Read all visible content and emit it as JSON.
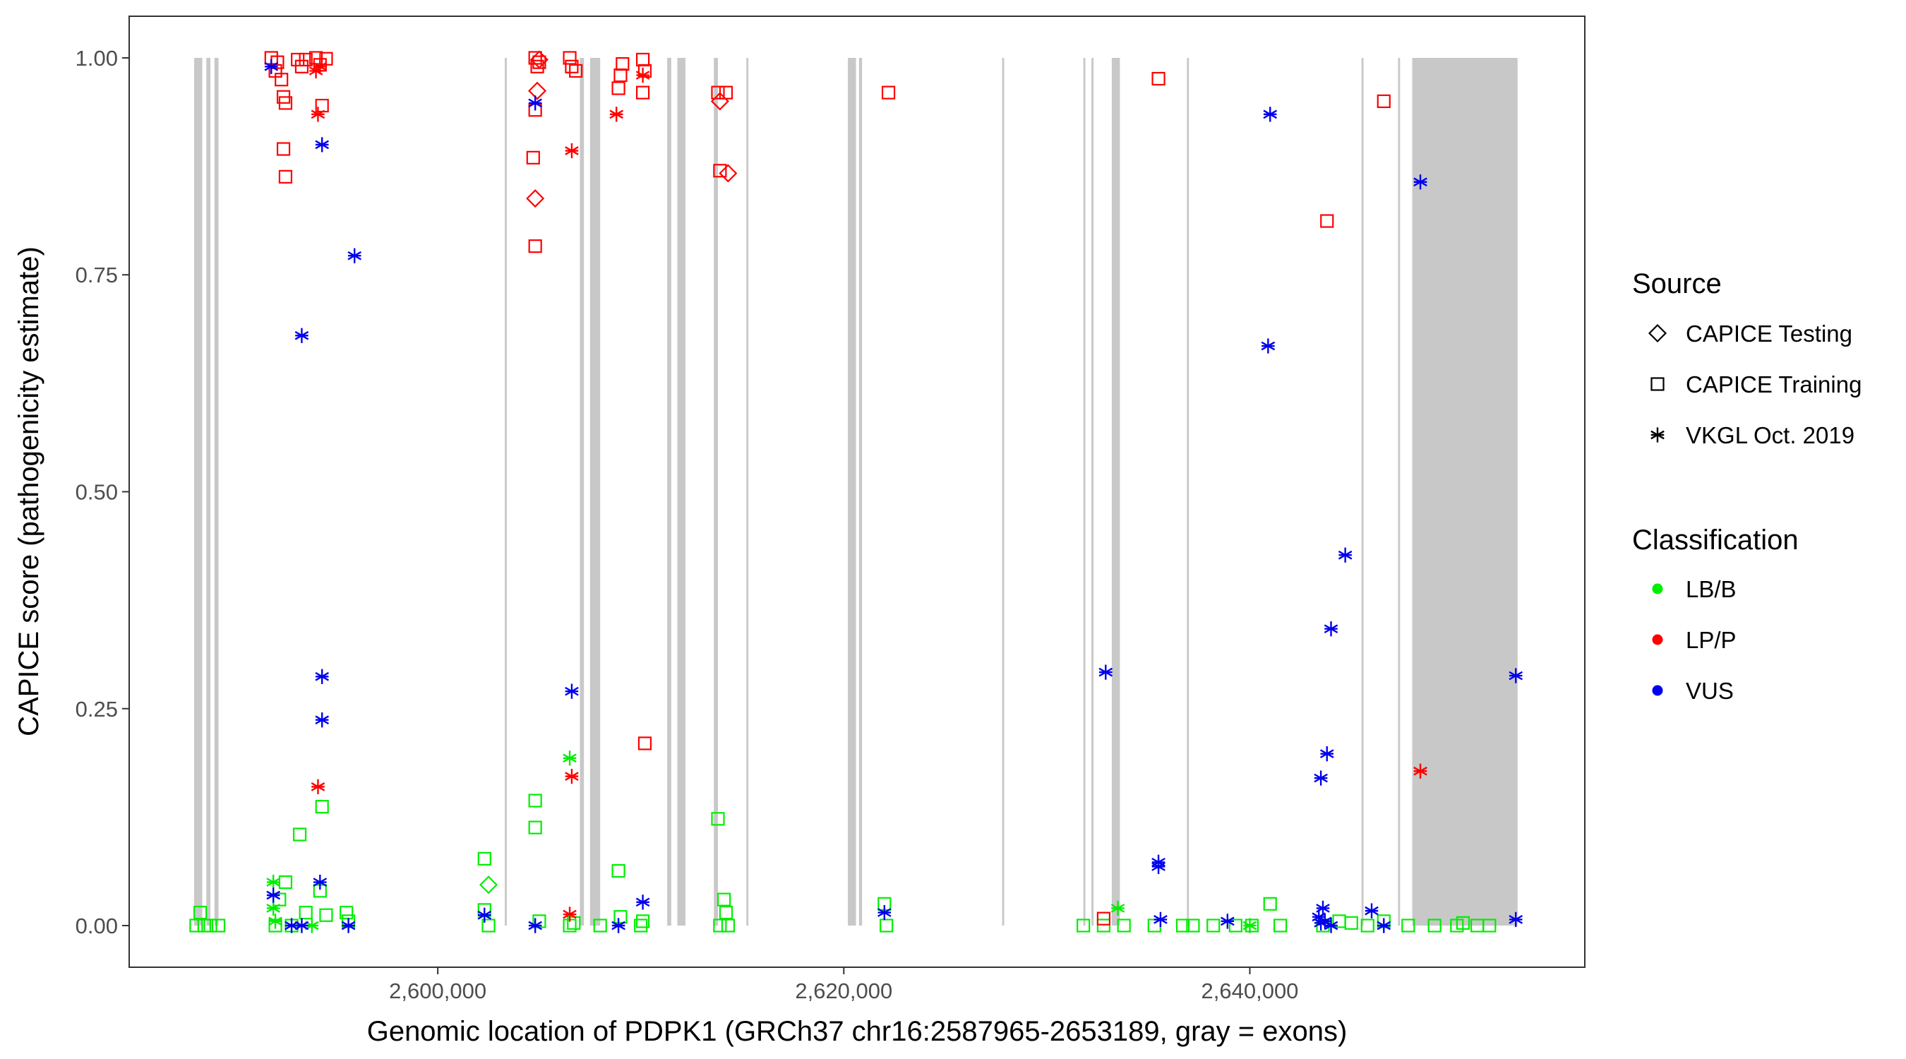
{
  "chart_data": {
    "type": "scatter",
    "title": "",
    "xlabel": "Genomic location of PDPK1 (GRCh37 chr16:2587965-2653189, gray = exons)",
    "ylabel": "CAPICE score (pathogenicity estimate)",
    "xlim": [
      2584800,
      2656500
    ],
    "ylim": [
      -0.048,
      1.048
    ],
    "x_ticks": [
      2600000,
      2620000,
      2640000
    ],
    "x_tick_labels": [
      "2,600,000",
      "2,620,000",
      "2,640,000"
    ],
    "y_ticks": [
      0.0,
      0.25,
      0.5,
      0.75,
      1.0
    ],
    "y_tick_labels": [
      "0.00",
      "0.25",
      "0.50",
      "0.75",
      "1.00"
    ],
    "grid": false,
    "legend_position": "right",
    "legend": {
      "source_title": "Source",
      "source_entries": [
        {
          "shape": "diamond",
          "label": "CAPICE Testing"
        },
        {
          "shape": "square",
          "label": "CAPICE Training"
        },
        {
          "shape": "asterisk",
          "label": "VKGL Oct. 2019"
        }
      ],
      "class_title": "Classification",
      "class_entries": [
        {
          "key": "LB/B",
          "label": "LB/B",
          "color": "#00ee00"
        },
        {
          "key": "LP/P",
          "label": "LP/P",
          "color": "#ff0000"
        },
        {
          "key": "VUS",
          "label": "VUS",
          "color": "#0000ee"
        }
      ]
    },
    "exons": [
      [
        2588000,
        2588400
      ],
      [
        2588600,
        2588800
      ],
      [
        2589000,
        2589200
      ],
      [
        2588700,
        2588750
      ],
      [
        2603300,
        2603400
      ],
      [
        2607500,
        2608000
      ],
      [
        2607000,
        2607200
      ],
      [
        2611800,
        2612200
      ],
      [
        2611300,
        2611500
      ],
      [
        2613600,
        2613800
      ],
      [
        2615200,
        2615300
      ],
      [
        2620200,
        2620600
      ],
      [
        2620750,
        2620900
      ],
      [
        2627800,
        2627900
      ],
      [
        2631800,
        2631900
      ],
      [
        2632200,
        2632300
      ],
      [
        2633200,
        2633600
      ],
      [
        2636900,
        2637000
      ],
      [
        2645500,
        2645600
      ],
      [
        2647300,
        2647400
      ],
      [
        2648000,
        2653189
      ]
    ],
    "series": [
      {
        "name": "CAPICE Training",
        "shape": "square",
        "points": [
          {
            "x": 2588100,
            "y": 0.0,
            "c": "LB/B"
          },
          {
            "x": 2588300,
            "y": 0.015,
            "c": "LB/B"
          },
          {
            "x": 2588500,
            "y": 0.0,
            "c": "LB/B"
          },
          {
            "x": 2588800,
            "y": 0.0,
            "c": "LB/B"
          },
          {
            "x": 2589200,
            "y": 0.0,
            "c": "LB/B"
          },
          {
            "x": 2592000,
            "y": 0.0,
            "c": "LB/B"
          },
          {
            "x": 2592200,
            "y": 0.03,
            "c": "LB/B"
          },
          {
            "x": 2592500,
            "y": 0.05,
            "c": "LB/B"
          },
          {
            "x": 2592800,
            "y": 0.0,
            "c": "LB/B"
          },
          {
            "x": 2593200,
            "y": 0.105,
            "c": "LB/B"
          },
          {
            "x": 2593500,
            "y": 0.015,
            "c": "LB/B"
          },
          {
            "x": 2594200,
            "y": 0.04,
            "c": "LB/B"
          },
          {
            "x": 2594300,
            "y": 0.137,
            "c": "LB/B"
          },
          {
            "x": 2594500,
            "y": 0.012,
            "c": "LB/B"
          },
          {
            "x": 2595500,
            "y": 0.015,
            "c": "LB/B"
          },
          {
            "x": 2595600,
            "y": 0.005,
            "c": "LB/B"
          },
          {
            "x": 2591800,
            "y": 1.0,
            "c": "LP/P"
          },
          {
            "x": 2592000,
            "y": 0.985,
            "c": "LP/P"
          },
          {
            "x": 2592100,
            "y": 0.995,
            "c": "LP/P"
          },
          {
            "x": 2592300,
            "y": 0.975,
            "c": "LP/P"
          },
          {
            "x": 2592400,
            "y": 0.955,
            "c": "LP/P"
          },
          {
            "x": 2592500,
            "y": 0.948,
            "c": "LP/P"
          },
          {
            "x": 2592400,
            "y": 0.895,
            "c": "LP/P"
          },
          {
            "x": 2592500,
            "y": 0.863,
            "c": "LP/P"
          },
          {
            "x": 2593100,
            "y": 0.998,
            "c": "LP/P"
          },
          {
            "x": 2593300,
            "y": 0.99,
            "c": "LP/P"
          },
          {
            "x": 2593500,
            "y": 0.998,
            "c": "LP/P"
          },
          {
            "x": 2594000,
            "y": 1.0,
            "c": "LP/P"
          },
          {
            "x": 2594200,
            "y": 0.992,
            "c": "LP/P"
          },
          {
            "x": 2594300,
            "y": 0.945,
            "c": "LP/P"
          },
          {
            "x": 2594500,
            "y": 0.999,
            "c": "LP/P"
          },
          {
            "x": 2602300,
            "y": 0.077,
            "c": "LB/B"
          },
          {
            "x": 2602300,
            "y": 0.018,
            "c": "LB/B"
          },
          {
            "x": 2602500,
            "y": 0.0,
            "c": "LB/B"
          },
          {
            "x": 2604800,
            "y": 0.144,
            "c": "LB/B"
          },
          {
            "x": 2604800,
            "y": 0.113,
            "c": "LB/B"
          },
          {
            "x": 2605000,
            "y": 0.005,
            "c": "LB/B"
          },
          {
            "x": 2606500,
            "y": 0.0,
            "c": "LB/B"
          },
          {
            "x": 2606700,
            "y": 0.003,
            "c": "LB/B"
          },
          {
            "x": 2608000,
            "y": 0.0,
            "c": "LB/B"
          },
          {
            "x": 2608900,
            "y": 0.063,
            "c": "LB/B"
          },
          {
            "x": 2609000,
            "y": 0.01,
            "c": "LB/B"
          },
          {
            "x": 2610000,
            "y": 0.0,
            "c": "LB/B"
          },
          {
            "x": 2610100,
            "y": 0.005,
            "c": "LB/B"
          },
          {
            "x": 2604800,
            "y": 1.0,
            "c": "LP/P"
          },
          {
            "x": 2604900,
            "y": 0.99,
            "c": "LP/P"
          },
          {
            "x": 2604800,
            "y": 0.94,
            "c": "LP/P"
          },
          {
            "x": 2604700,
            "y": 0.885,
            "c": "LP/P"
          },
          {
            "x": 2604800,
            "y": 0.783,
            "c": "LP/P"
          },
          {
            "x": 2605000,
            "y": 0.995,
            "c": "LP/P"
          },
          {
            "x": 2606500,
            "y": 1.0,
            "c": "LP/P"
          },
          {
            "x": 2606600,
            "y": 0.99,
            "c": "LP/P"
          },
          {
            "x": 2606800,
            "y": 0.985,
            "c": "LP/P"
          },
          {
            "x": 2608900,
            "y": 0.965,
            "c": "LP/P"
          },
          {
            "x": 2609000,
            "y": 0.98,
            "c": "LP/P"
          },
          {
            "x": 2609100,
            "y": 0.993,
            "c": "LP/P"
          },
          {
            "x": 2610100,
            "y": 0.998,
            "c": "LP/P"
          },
          {
            "x": 2610100,
            "y": 0.96,
            "c": "LP/P"
          },
          {
            "x": 2610200,
            "y": 0.985,
            "c": "LP/P"
          },
          {
            "x": 2610200,
            "y": 0.21,
            "c": "LP/P"
          },
          {
            "x": 2613800,
            "y": 0.123,
            "c": "LB/B"
          },
          {
            "x": 2613900,
            "y": 0.0,
            "c": "LB/B"
          },
          {
            "x": 2614100,
            "y": 0.03,
            "c": "LB/B"
          },
          {
            "x": 2614200,
            "y": 0.015,
            "c": "LB/B"
          },
          {
            "x": 2614300,
            "y": 0.0,
            "c": "LB/B"
          },
          {
            "x": 2613800,
            "y": 0.96,
            "c": "LP/P"
          },
          {
            "x": 2614200,
            "y": 0.96,
            "c": "LP/P"
          },
          {
            "x": 2613900,
            "y": 0.87,
            "c": "LP/P"
          },
          {
            "x": 2622000,
            "y": 0.025,
            "c": "LB/B"
          },
          {
            "x": 2622100,
            "y": 0.0,
            "c": "LB/B"
          },
          {
            "x": 2622200,
            "y": 0.96,
            "c": "LP/P"
          },
          {
            "x": 2631800,
            "y": 0.0,
            "c": "LB/B"
          },
          {
            "x": 2632800,
            "y": 0.0,
            "c": "LB/B"
          },
          {
            "x": 2633800,
            "y": 0.0,
            "c": "LB/B"
          },
          {
            "x": 2635300,
            "y": 0.0,
            "c": "LB/B"
          },
          {
            "x": 2636700,
            "y": 0.0,
            "c": "LB/B"
          },
          {
            "x": 2637200,
            "y": 0.0,
            "c": "LB/B"
          },
          {
            "x": 2638200,
            "y": 0.0,
            "c": "LB/B"
          },
          {
            "x": 2639300,
            "y": 0.0,
            "c": "LB/B"
          },
          {
            "x": 2640100,
            "y": 0.0,
            "c": "LB/B"
          },
          {
            "x": 2641000,
            "y": 0.025,
            "c": "LB/B"
          },
          {
            "x": 2641500,
            "y": 0.0,
            "c": "LB/B"
          },
          {
            "x": 2643600,
            "y": 0.0,
            "c": "LB/B"
          },
          {
            "x": 2644400,
            "y": 0.005,
            "c": "LB/B"
          },
          {
            "x": 2645000,
            "y": 0.003,
            "c": "LB/B"
          },
          {
            "x": 2645800,
            "y": 0.0,
            "c": "LB/B"
          },
          {
            "x": 2646600,
            "y": 0.005,
            "c": "LB/B"
          },
          {
            "x": 2647800,
            "y": 0.0,
            "c": "LB/B"
          },
          {
            "x": 2649100,
            "y": 0.0,
            "c": "LB/B"
          },
          {
            "x": 2650200,
            "y": 0.0,
            "c": "LB/B"
          },
          {
            "x": 2650500,
            "y": 0.003,
            "c": "LB/B"
          },
          {
            "x": 2651200,
            "y": 0.0,
            "c": "LB/B"
          },
          {
            "x": 2651800,
            "y": 0.0,
            "c": "LB/B"
          },
          {
            "x": 2632800,
            "y": 0.008,
            "c": "LP/P"
          },
          {
            "x": 2635500,
            "y": 0.976,
            "c": "LP/P"
          },
          {
            "x": 2643800,
            "y": 0.812,
            "c": "LP/P"
          },
          {
            "x": 2646600,
            "y": 0.95,
            "c": "LP/P"
          }
        ]
      },
      {
        "name": "CAPICE Testing",
        "shape": "diamond",
        "points": [
          {
            "x": 2604900,
            "y": 0.962,
            "c": "LP/P"
          },
          {
            "x": 2604800,
            "y": 0.838,
            "c": "LP/P"
          },
          {
            "x": 2605000,
            "y": 0.998,
            "c": "LP/P"
          },
          {
            "x": 2613900,
            "y": 0.95,
            "c": "LP/P"
          },
          {
            "x": 2614300,
            "y": 0.867,
            "c": "LP/P"
          },
          {
            "x": 2602500,
            "y": 0.047,
            "c": "LB/B"
          }
        ]
      },
      {
        "name": "VKGL Oct. 2019",
        "shape": "asterisk",
        "points": [
          {
            "x": 2591900,
            "y": 0.05,
            "c": "LB/B"
          },
          {
            "x": 2591900,
            "y": 0.02,
            "c": "LB/B"
          },
          {
            "x": 2592000,
            "y": 0.005,
            "c": "LB/B"
          },
          {
            "x": 2593800,
            "y": 0.0,
            "c": "LB/B"
          },
          {
            "x": 2606500,
            "y": 0.193,
            "c": "LB/B"
          },
          {
            "x": 2633500,
            "y": 0.02,
            "c": "LB/B"
          },
          {
            "x": 2640000,
            "y": 0.0,
            "c": "LB/B"
          },
          {
            "x": 2594000,
            "y": 0.985,
            "c": "LP/P"
          },
          {
            "x": 2594100,
            "y": 0.935,
            "c": "LP/P"
          },
          {
            "x": 2594200,
            "y": 0.99,
            "c": "LP/P"
          },
          {
            "x": 2594100,
            "y": 0.16,
            "c": "LP/P"
          },
          {
            "x": 2606600,
            "y": 0.893,
            "c": "LP/P"
          },
          {
            "x": 2606600,
            "y": 0.172,
            "c": "LP/P"
          },
          {
            "x": 2606500,
            "y": 0.013,
            "c": "LP/P"
          },
          {
            "x": 2608800,
            "y": 0.935,
            "c": "LP/P"
          },
          {
            "x": 2610100,
            "y": 0.98,
            "c": "LP/P"
          },
          {
            "x": 2648400,
            "y": 0.178,
            "c": "LP/P"
          },
          {
            "x": 2591800,
            "y": 0.99,
            "c": "VUS"
          },
          {
            "x": 2593300,
            "y": 0.68,
            "c": "VUS"
          },
          {
            "x": 2594300,
            "y": 0.9,
            "c": "VUS"
          },
          {
            "x": 2595900,
            "y": 0.772,
            "c": "VUS"
          },
          {
            "x": 2594300,
            "y": 0.287,
            "c": "VUS"
          },
          {
            "x": 2594300,
            "y": 0.237,
            "c": "VUS"
          },
          {
            "x": 2594200,
            "y": 0.05,
            "c": "VUS"
          },
          {
            "x": 2591900,
            "y": 0.035,
            "c": "VUS"
          },
          {
            "x": 2592800,
            "y": 0.0,
            "c": "VUS"
          },
          {
            "x": 2593300,
            "y": 0.0,
            "c": "VUS"
          },
          {
            "x": 2595600,
            "y": 0.0,
            "c": "VUS"
          },
          {
            "x": 2604800,
            "y": 0.948,
            "c": "VUS"
          },
          {
            "x": 2606600,
            "y": 0.27,
            "c": "VUS"
          },
          {
            "x": 2602300,
            "y": 0.012,
            "c": "VUS"
          },
          {
            "x": 2604800,
            "y": 0.0,
            "c": "VUS"
          },
          {
            "x": 2608900,
            "y": 0.0,
            "c": "VUS"
          },
          {
            "x": 2610100,
            "y": 0.027,
            "c": "VUS"
          },
          {
            "x": 2622000,
            "y": 0.015,
            "c": "VUS"
          },
          {
            "x": 2632900,
            "y": 0.292,
            "c": "VUS"
          },
          {
            "x": 2635500,
            "y": 0.073,
            "c": "VUS"
          },
          {
            "x": 2635500,
            "y": 0.068,
            "c": "VUS"
          },
          {
            "x": 2635600,
            "y": 0.007,
            "c": "VUS"
          },
          {
            "x": 2638900,
            "y": 0.005,
            "c": "VUS"
          },
          {
            "x": 2641000,
            "y": 0.935,
            "c": "VUS"
          },
          {
            "x": 2640900,
            "y": 0.668,
            "c": "VUS"
          },
          {
            "x": 2643400,
            "y": 0.01,
            "c": "VUS"
          },
          {
            "x": 2643600,
            "y": 0.02,
            "c": "VUS"
          },
          {
            "x": 2643500,
            "y": 0.003,
            "c": "VUS"
          },
          {
            "x": 2643700,
            "y": 0.005,
            "c": "VUS"
          },
          {
            "x": 2643500,
            "y": 0.17,
            "c": "VUS"
          },
          {
            "x": 2643800,
            "y": 0.198,
            "c": "VUS"
          },
          {
            "x": 2644000,
            "y": 0.342,
            "c": "VUS"
          },
          {
            "x": 2644000,
            "y": 0.0,
            "c": "VUS"
          },
          {
            "x": 2644700,
            "y": 0.427,
            "c": "VUS"
          },
          {
            "x": 2646000,
            "y": 0.017,
            "c": "VUS"
          },
          {
            "x": 2646600,
            "y": 0.0,
            "c": "VUS"
          },
          {
            "x": 2648400,
            "y": 0.857,
            "c": "VUS"
          },
          {
            "x": 2653100,
            "y": 0.288,
            "c": "VUS"
          },
          {
            "x": 2653100,
            "y": 0.007,
            "c": "VUS"
          }
        ]
      }
    ]
  }
}
